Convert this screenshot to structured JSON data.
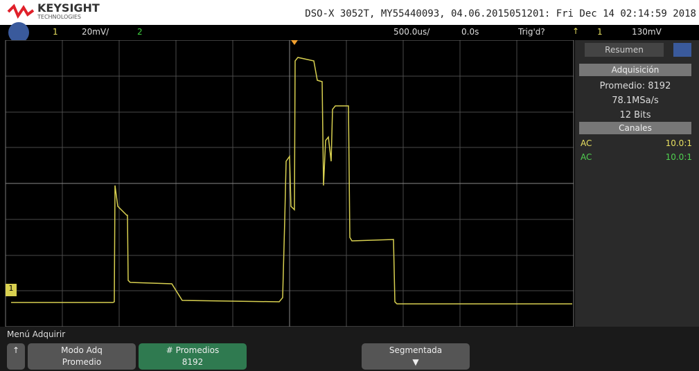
{
  "header": {
    "brand": "KEYSIGHT",
    "brand_sub": "TECHNOLOGIES",
    "info": "DSO-X 3052T, MY55440093, 04.06.2015051201: Fri Dec 14 02:14:59 2018"
  },
  "toolbar": {
    "ch1": "1",
    "ch1_scale": "20mV/",
    "ch2": "2",
    "timebase": "500.0us/",
    "delay": "0.0s",
    "trigger_status": "Trig'd?",
    "trigger_channel": "1",
    "trigger_level": "130mV"
  },
  "screen": {
    "ground_marker": "1"
  },
  "panel": {
    "tab": "Resumen",
    "acquisition": {
      "title": "Adquisición",
      "lines": [
        "Promedio: 8192",
        "78.1MSa/s",
        "12 Bits"
      ]
    },
    "channels": {
      "title": "Canales",
      "rows": [
        {
          "coupling": "AC",
          "probe": "10.0:1"
        },
        {
          "coupling": "AC",
          "probe": "10.0:1"
        }
      ]
    }
  },
  "menu": {
    "title": "Menú Adquirir",
    "buttons": [
      {
        "label": "Modo Adq",
        "value": "Promedio"
      },
      {
        "label": "# Promedios",
        "value": "8192"
      },
      {
        "label": "Segmentada"
      }
    ]
  }
}
